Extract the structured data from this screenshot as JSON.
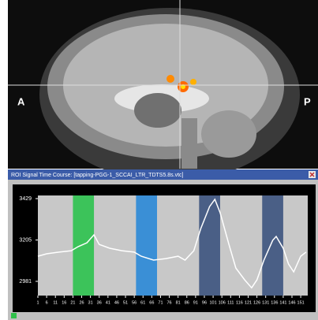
{
  "image_labels": {
    "left": "A",
    "right": "P"
  },
  "chart_data": {
    "type": "line",
    "title": "ROI Signal Time Course: [tapping-PGG-1_SCCAI_LTR_TDTS5.8s.vtc]",
    "x": [
      1,
      6,
      13,
      20,
      24,
      29,
      33,
      36,
      42,
      49,
      56,
      60,
      67,
      74,
      81,
      85,
      90,
      94,
      99,
      102,
      105,
      110,
      114,
      119,
      123,
      126,
      130,
      135,
      137,
      141,
      144,
      147,
      151,
      154
    ],
    "values": [
      3117,
      3130,
      3139,
      3147,
      3169,
      3190,
      3233,
      3181,
      3160,
      3147,
      3139,
      3117,
      3096,
      3104,
      3117,
      3096,
      3147,
      3267,
      3386,
      3425,
      3352,
      3181,
      3053,
      2989,
      2946,
      2989,
      3096,
      3203,
      3224,
      3160,
      3075,
      3032,
      3117,
      3139
    ],
    "color": "#ffffff",
    "blocks": [
      {
        "start": 21,
        "end": 33,
        "color": "#3cc35a"
      },
      {
        "start": 57,
        "end": 69,
        "color": "#3a8fd6"
      },
      {
        "start": 93,
        "end": 105,
        "color": "#4a5f86"
      },
      {
        "start": 129,
        "end": 141,
        "color": "#4a5f86"
      }
    ],
    "xlim": [
      1,
      155
    ],
    "ylim": [
      2904,
      3446
    ],
    "xticks": [
      1,
      6,
      11,
      16,
      21,
      26,
      31,
      36,
      41,
      46,
      51,
      56,
      61,
      66,
      71,
      76,
      81,
      86,
      91,
      96,
      101,
      106,
      111,
      116,
      121,
      126,
      131,
      136,
      141,
      146,
      151
    ],
    "yticks": [
      2981,
      3205,
      3429
    ]
  }
}
